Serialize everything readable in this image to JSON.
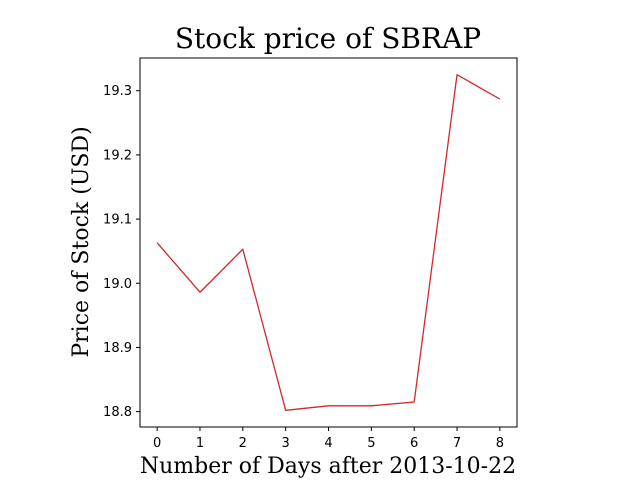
{
  "chart_data": {
    "type": "line",
    "title": "Stock price of SBRAP",
    "xlabel": "Number of Days after 2013-10-22",
    "ylabel": "Price of Stock (USD)",
    "x": [
      0,
      1,
      2,
      3,
      4,
      5,
      6,
      7,
      8
    ],
    "series": [
      {
        "values": [
          19.063,
          18.986,
          19.053,
          18.802,
          18.809,
          18.809,
          18.815,
          19.325,
          19.287
        ],
        "color": "#d62728"
      }
    ],
    "xlim": [
      -0.4,
      8.4
    ],
    "ylim": [
      18.776,
      19.351
    ],
    "xticks": [
      "0",
      "1",
      "2",
      "3",
      "4",
      "5",
      "6",
      "7",
      "8"
    ],
    "yticks": [
      "18.8",
      "18.9",
      "19.0",
      "19.1",
      "19.2",
      "19.3"
    ],
    "grid": false,
    "legend": "none"
  }
}
